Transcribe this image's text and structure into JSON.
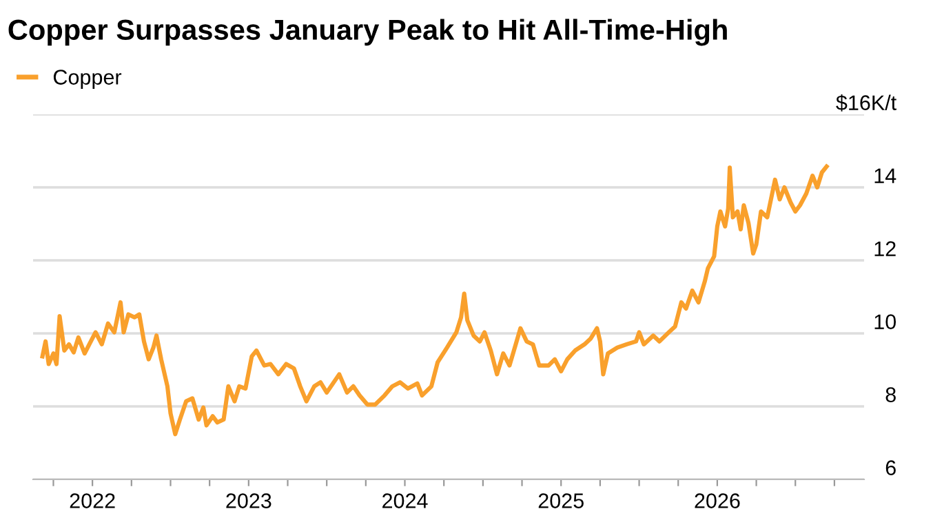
{
  "chart_data": {
    "type": "line",
    "title": "Copper Surpasses January Peak to Hit All-Time-High",
    "legend": "top left",
    "grid": "y",
    "marker": "none",
    "line_style": "solid",
    "xlim": [
      2021.62,
      2026.94
    ],
    "xticks": [
      {
        "value": 2021.75,
        "label": null
      },
      2022,
      {
        "value": 2022.25,
        "label": null
      },
      {
        "value": 2022.5,
        "label": null
      },
      {
        "value": 2022.75,
        "label": null
      },
      2023,
      {
        "value": 2023.25,
        "label": null
      },
      {
        "value": 2023.5,
        "label": null
      },
      {
        "value": 2023.75,
        "label": null
      },
      2024,
      {
        "value": 2024.25,
        "label": null
      },
      {
        "value": 2024.5,
        "label": null
      },
      {
        "value": 2024.75,
        "label": null
      },
      2025,
      {
        "value": 2025.25,
        "label": null
      },
      {
        "value": 2025.5,
        "label": null
      },
      {
        "value": 2025.75,
        "label": null
      },
      2026,
      {
        "value": 2026.25,
        "label": null
      },
      {
        "value": 2026.5,
        "label": null
      },
      {
        "value": 2026.75,
        "label": null
      }
    ],
    "ylim": [
      6,
      16
    ],
    "yticks": [
      6,
      8,
      10,
      12,
      14,
      {
        "value": 16,
        "label": "$16K/t"
      }
    ],
    "x": [
      2021.68,
      2021.7,
      2021.72,
      2021.75,
      2021.77,
      2021.79,
      2021.82,
      2021.85,
      2021.88,
      2021.91,
      2021.95,
      2021.98,
      2022.02,
      2022.06,
      2022.1,
      2022.14,
      2022.18,
      2022.2,
      2022.23,
      2022.27,
      2022.3,
      2022.33,
      2022.36,
      2022.39,
      2022.41,
      2022.44,
      2022.48,
      2022.5,
      2022.53,
      2022.56,
      2022.6,
      2022.64,
      2022.68,
      2022.71,
      2022.73,
      2022.77,
      2022.8,
      2022.84,
      2022.87,
      2022.91,
      2022.94,
      2022.98,
      2023.02,
      2023.05,
      2023.1,
      2023.14,
      2023.19,
      2023.24,
      2023.29,
      2023.33,
      2023.37,
      2023.42,
      2023.46,
      2023.5,
      2023.54,
      2023.58,
      2023.63,
      2023.67,
      2023.71,
      2023.76,
      2023.81,
      2023.87,
      2023.92,
      2023.97,
      2024.02,
      2024.08,
      2024.11,
      2024.17,
      2024.21,
      2024.27,
      2024.33,
      2024.36,
      2024.38,
      2024.4,
      2024.44,
      2024.48,
      2024.51,
      2024.55,
      2024.59,
      2024.63,
      2024.67,
      2024.71,
      2024.74,
      2024.78,
      2024.82,
      2024.86,
      2024.92,
      2024.96,
      2025.0,
      2025.04,
      2025.09,
      2025.15,
      2025.19,
      2025.23,
      2025.25,
      2025.27,
      2025.3,
      2025.36,
      2025.42,
      2025.48,
      2025.5,
      2025.53,
      2025.59,
      2025.63,
      2025.69,
      2025.73,
      2025.77,
      2025.8,
      2025.84,
      2025.88,
      2025.92,
      2025.94,
      2025.98,
      2026.0,
      2026.02,
      2026.05,
      2026.07,
      2026.08,
      2026.1,
      2026.13,
      2026.15,
      2026.17,
      2026.2,
      2026.23,
      2026.25,
      2026.28,
      2026.32,
      2026.37,
      2026.4,
      2026.43,
      2026.47,
      2026.5,
      2026.53,
      2026.57,
      2026.61,
      2026.64,
      2026.67,
      2026.7
    ],
    "series": [
      {
        "name": "Copper",
        "color": "#f9a02c",
        "values": [
          9.37,
          9.78,
          9.16,
          9.45,
          9.16,
          10.47,
          9.53,
          9.7,
          9.48,
          9.89,
          9.45,
          9.7,
          10.03,
          9.7,
          10.27,
          10.03,
          10.85,
          10.03,
          10.52,
          10.44,
          10.52,
          9.78,
          9.29,
          9.61,
          9.94,
          9.29,
          8.55,
          7.81,
          7.24,
          7.64,
          8.14,
          8.22,
          7.64,
          7.97,
          7.48,
          7.73,
          7.56,
          7.64,
          8.55,
          8.14,
          8.55,
          8.49,
          9.37,
          9.53,
          9.12,
          9.16,
          8.88,
          9.16,
          9.04,
          8.55,
          8.14,
          8.55,
          8.66,
          8.38,
          8.63,
          8.88,
          8.38,
          8.55,
          8.3,
          8.05,
          8.05,
          8.3,
          8.55,
          8.66,
          8.49,
          8.63,
          8.3,
          8.55,
          9.21,
          9.61,
          10.03,
          10.44,
          11.09,
          10.36,
          9.94,
          9.78,
          10.03,
          9.53,
          8.88,
          9.45,
          9.12,
          9.7,
          10.14,
          9.78,
          9.7,
          9.12,
          9.12,
          9.29,
          8.96,
          9.29,
          9.53,
          9.7,
          9.86,
          10.14,
          9.78,
          8.88,
          9.45,
          9.61,
          9.7,
          9.78,
          10.03,
          9.7,
          9.94,
          9.78,
          10.03,
          10.19,
          10.85,
          10.68,
          11.17,
          10.85,
          11.42,
          11.78,
          12.11,
          12.93,
          13.34,
          12.93,
          13.42,
          14.54,
          13.18,
          13.34,
          12.85,
          13.51,
          13.02,
          12.19,
          12.44,
          13.34,
          13.18,
          14.21,
          13.67,
          14.0,
          13.58,
          13.34,
          13.51,
          13.83,
          14.32,
          14.0,
          14.41,
          14.57
        ]
      }
    ]
  }
}
